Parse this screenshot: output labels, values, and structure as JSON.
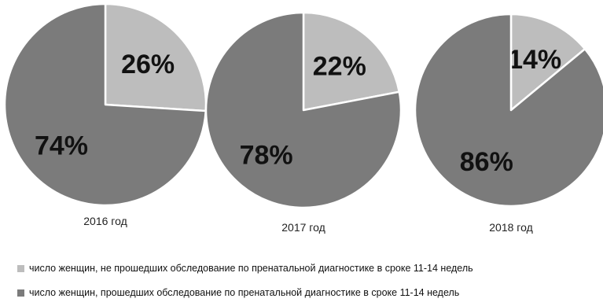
{
  "chart_data": {
    "type": "pie",
    "series": [
      {
        "name": "число женщин,  не прошедших обследование по пренатальной диагностике в сроке 11-14 недель",
        "color": "#bdbdbd"
      },
      {
        "name": "число женщин, прошедших обследование по пренатальной диагностике в сроке 11-14 недель",
        "color": "#7b7b7b"
      }
    ],
    "pies": [
      {
        "title": "2016 год",
        "values": [
          26,
          74
        ],
        "labels": [
          "26%",
          "74%"
        ]
      },
      {
        "title": "2017 год",
        "values": [
          22,
          78
        ],
        "labels": [
          "22%",
          "78%"
        ]
      },
      {
        "title": "2018 год",
        "values": [
          14,
          86
        ],
        "labels": [
          "14%",
          "86%"
        ]
      }
    ],
    "legend_position": "bottom"
  }
}
